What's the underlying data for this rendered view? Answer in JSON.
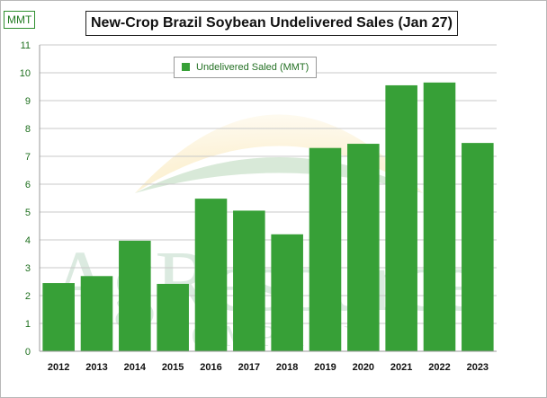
{
  "chart_data": {
    "type": "bar",
    "title": "New-Crop Brazil Soybean Undelivered Sales (Jan 27)",
    "unit_label": "MMT",
    "categories": [
      "2012",
      "2013",
      "2014",
      "2015",
      "2016",
      "2017",
      "2018",
      "2019",
      "2020",
      "2021",
      "2022",
      "2023"
    ],
    "series": [
      {
        "name": "Undelivered Saled (MMT)",
        "values": [
          2.45,
          2.7,
          3.97,
          2.42,
          5.48,
          5.05,
          4.2,
          7.3,
          7.45,
          9.55,
          9.65,
          7.48
        ],
        "color": "#37a037"
      }
    ],
    "yticks": [
      0,
      1,
      2,
      3,
      4,
      5,
      6,
      7,
      8,
      9,
      10,
      11
    ],
    "ylim": [
      0,
      11
    ],
    "grid": true,
    "legend_position": "top-left"
  },
  "watermark": {
    "name": "AgResource logo",
    "text": "AgResource",
    "subtext": "COMPANY"
  }
}
